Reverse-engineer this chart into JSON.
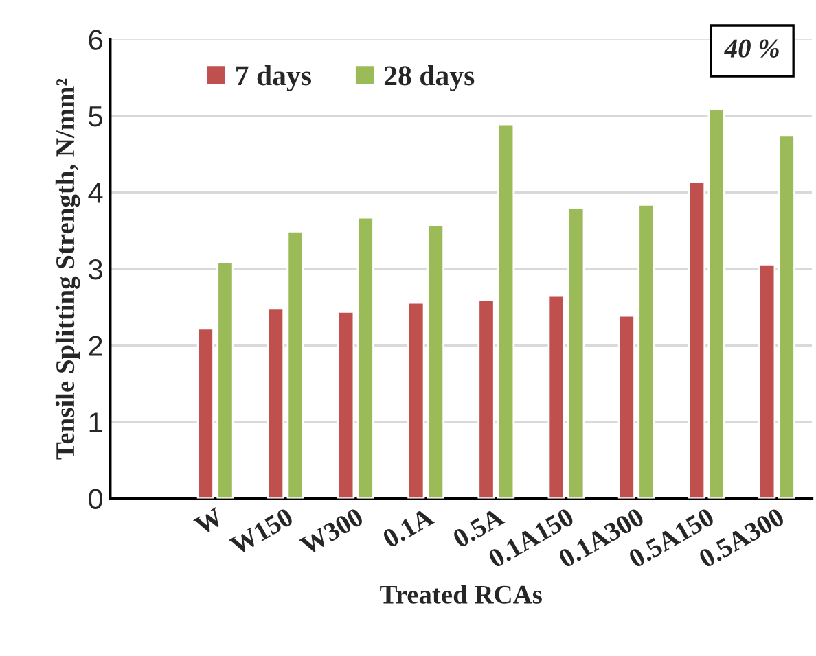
{
  "chart_data": {
    "type": "bar",
    "xlabel": "Treated RCAs",
    "ylabel": "Tensile Splitting Strength, N/mm²",
    "categories": [
      null,
      "W",
      "W150",
      "W300",
      "0.1A",
      "0.5A",
      "0.1A150",
      "0.1A300",
      "0.5A150",
      "0.5A300"
    ],
    "series": [
      {
        "name": "7 days",
        "color": "#c0504d",
        "values": [
          null,
          2.22,
          2.48,
          2.44,
          2.56,
          2.6,
          2.65,
          2.39,
          4.14,
          3.06
        ]
      },
      {
        "name": "28 days",
        "color": "#9bbb59",
        "values": [
          null,
          3.09,
          3.49,
          3.67,
          3.57,
          4.89,
          3.8,
          3.84,
          5.09,
          4.75
        ]
      }
    ],
    "ylim": [
      0,
      6
    ],
    "yticks": [
      0,
      1,
      2,
      3,
      4,
      5,
      6
    ],
    "grid": "y",
    "legend": "top",
    "annotations": [
      "40 %"
    ]
  }
}
